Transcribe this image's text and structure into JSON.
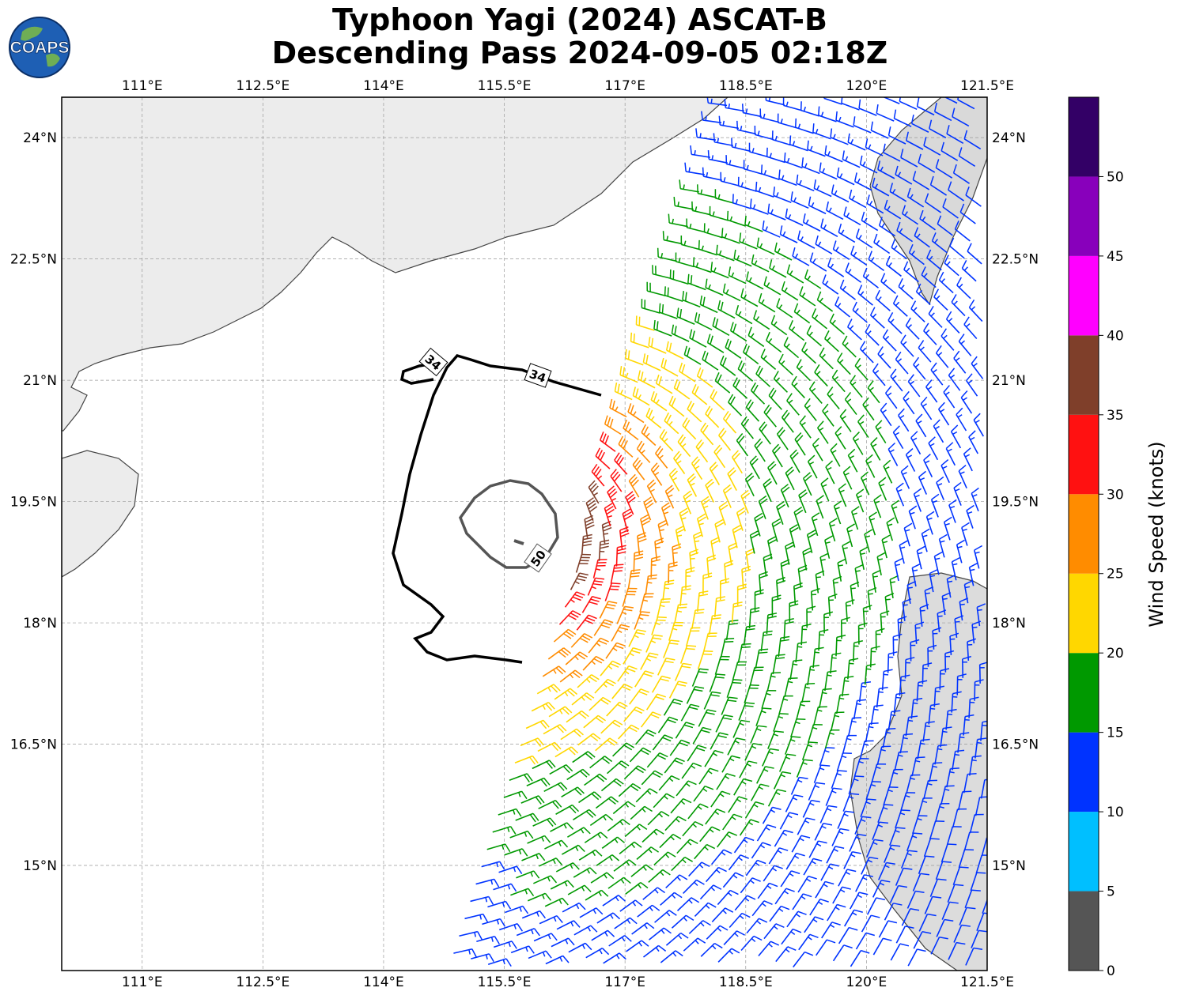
{
  "title": {
    "line1": "Typhoon Yagi (2024) ASCAT-B",
    "line2": "Descending Pass 2024-09-05 02:18Z"
  },
  "logo": {
    "text": "COAPS",
    "icon": "globe-logo-icon"
  },
  "map": {
    "lon_range": [
      110.0,
      121.5
    ],
    "lat_range": [
      13.7,
      24.5
    ],
    "lon_ticks": [
      "111°E",
      "112.5°E",
      "114°E",
      "115.5°E",
      "117°E",
      "118.5°E",
      "120°E",
      "121.5°E"
    ],
    "lon_tick_values": [
      111.0,
      112.5,
      114.0,
      115.5,
      117.0,
      118.5,
      120.0,
      121.5
    ],
    "lat_ticks": [
      "24°N",
      "22.5°N",
      "21°N",
      "19.5°N",
      "18°N",
      "16.5°N",
      "15°N"
    ],
    "lat_tick_values": [
      24.0,
      22.5,
      21.0,
      19.5,
      18.0,
      16.5,
      15.0
    ],
    "gridlines": true,
    "storm_center": {
      "lon": 115.55,
      "lat": 19.25
    },
    "swath_edge_lon_at_top": 118.3,
    "contours": [
      {
        "label": "34",
        "value": 34,
        "color": "#000000"
      },
      {
        "label": "34",
        "value": 34,
        "color": "#000000"
      },
      {
        "label": "50",
        "value": 50,
        "color": "#555555"
      }
    ]
  },
  "colorbar": {
    "label": "Wind Speed (knots)",
    "bounds": [
      0,
      5,
      10,
      15,
      20,
      25,
      30,
      35,
      40,
      45,
      50,
      55
    ],
    "tick_labels": [
      "0",
      "5",
      "10",
      "15",
      "20",
      "25",
      "30",
      "35",
      "40",
      "45",
      "50"
    ],
    "colors": [
      "#555555",
      "#00bfff",
      "#0033ff",
      "#009900",
      "#ffd700",
      "#ff8c00",
      "#ff1111",
      "#7f3f2a",
      "#ff00ff",
      "#8800bb",
      "#330066"
    ]
  },
  "chart_data": {
    "type": "wind_barbs",
    "title": "Typhoon Yagi (2024) ASCAT-B Descending Pass 2024-09-05 02:18Z",
    "colorbar_label": "Wind Speed (knots)",
    "xlim": [
      110.0,
      121.5
    ],
    "ylim": [
      13.7,
      24.5
    ],
    "center_lon": 115.55,
    "center_lat": 19.25,
    "max_wind_kt": 55,
    "radius_34kt_deg": 1.8,
    "radius_50kt_deg": 0.6
  }
}
